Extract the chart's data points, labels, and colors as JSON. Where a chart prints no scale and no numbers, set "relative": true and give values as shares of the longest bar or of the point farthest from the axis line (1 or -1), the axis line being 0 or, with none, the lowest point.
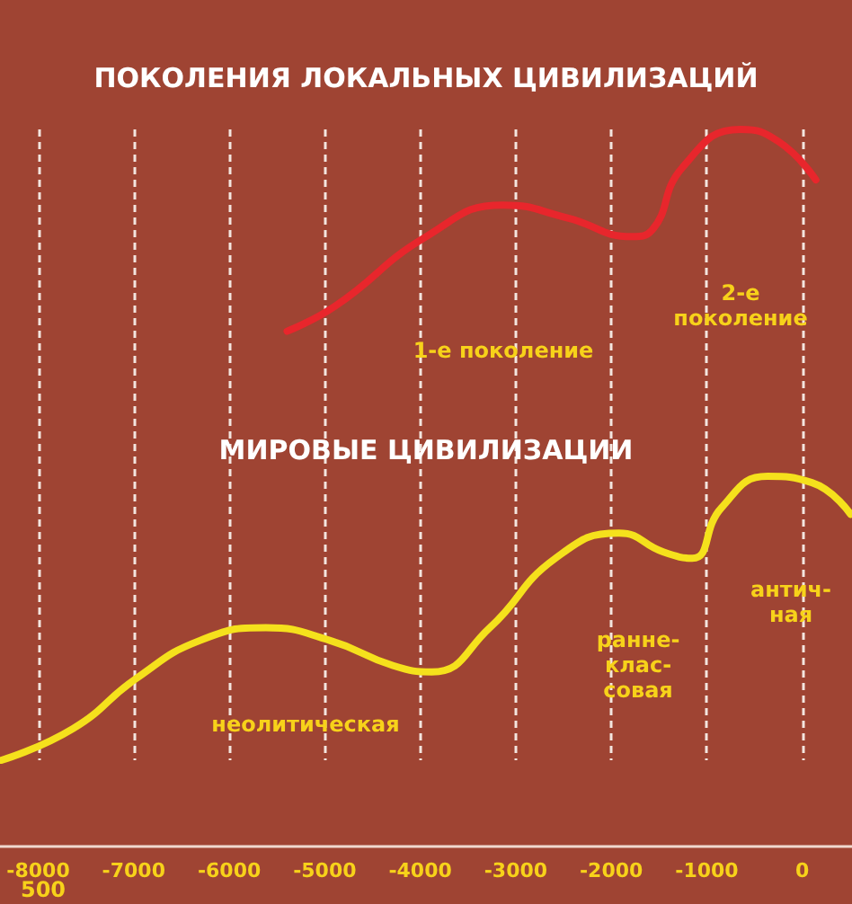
{
  "chart_data": {
    "type": "line",
    "relative": true,
    "grid": "x",
    "legend": false,
    "marker": "none",
    "line_style": "solid",
    "xlim": [
      -8400,
      520
    ],
    "xticks": [
      -8000,
      -7000,
      -6000,
      -5000,
      -4000,
      -3000,
      -2000,
      -1000,
      0
    ],
    "series": [
      {
        "name": "ПОКОЛЕНИЯ ЛОКАЛЬНЫХ ЦИВИЛИЗАЦИЙ",
        "color": "#e8262c",
        "x": [
          -5394,
          -4889,
          -3939,
          -3131,
          -2465,
          -1778,
          -1576,
          -1253,
          -646,
          -242,
          141
        ],
        "values": [
          0.68,
          0.72,
          0.83,
          0.88,
          0.86,
          0.83,
          0.84,
          0.94,
          1.0,
          0.98,
          0.92
        ]
      },
      {
        "name": "МИРОВЫЕ ЦИВИЛИЗАЦИИ",
        "color": "#f5e11c",
        "x": [
          -8384,
          -7636,
          -6970,
          -6303,
          -5616,
          -4949,
          -4283,
          -3879,
          -3273,
          -2586,
          -1919,
          -1455,
          -1152,
          -848,
          -364,
          101,
          505
        ],
        "values": [
          0,
          0.05,
          0.13,
          0.19,
          0.21,
          0.19,
          0.15,
          0.14,
          0.21,
          0.32,
          0.36,
          0.33,
          0.32,
          0.4,
          0.45,
          0.44,
          0.39
        ]
      }
    ],
    "annotations": [
      "1-е поколение",
      "2-е\nпоколение",
      "неолитическая",
      "ранне-\nклас-\nсовая",
      "антич-\nная",
      "500"
    ]
  }
}
